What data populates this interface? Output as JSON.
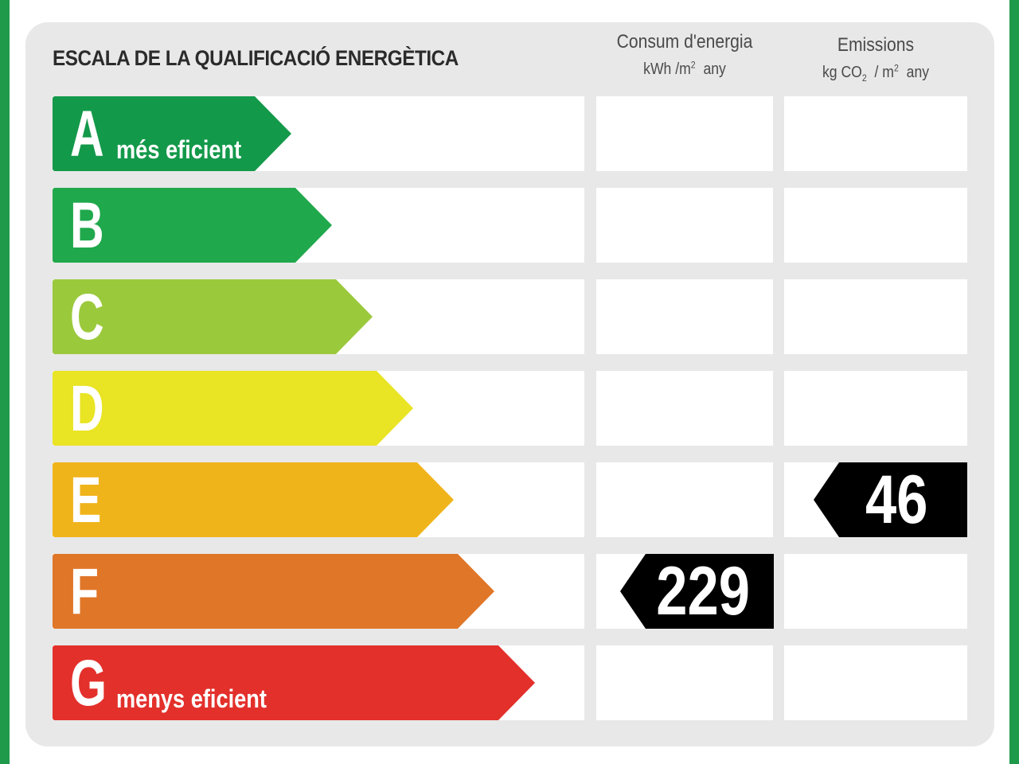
{
  "title": "ESCALA DE LA QUALIFICACIÓ ENERGÈTICA",
  "columns": {
    "energy": {
      "label": "Consum d'energia",
      "unit_prefix": "kWh /m",
      "unit_sup": "2",
      "unit_suffix": "any"
    },
    "emissions": {
      "label": "Emissions",
      "unit_prefix": "kg CO",
      "unit_sub": "2",
      "unit_mid": "/ m",
      "unit_sup": "2",
      "unit_suffix": "any"
    }
  },
  "ratings": [
    {
      "letter": "A",
      "sublabel": "més eficient",
      "color": "#13994a"
    },
    {
      "letter": "B",
      "sublabel": "",
      "color": "#20a84c"
    },
    {
      "letter": "C",
      "sublabel": "",
      "color": "#9bc93c"
    },
    {
      "letter": "D",
      "sublabel": "",
      "color": "#e9e424"
    },
    {
      "letter": "E",
      "sublabel": "",
      "color": "#f0b41b"
    },
    {
      "letter": "F",
      "sublabel": "",
      "color": "#e07628"
    },
    {
      "letter": "G",
      "sublabel": "menys eficient",
      "color": "#e3302b"
    }
  ],
  "energy_rating": {
    "letter": "F",
    "value": "229"
  },
  "emissions_rating": {
    "letter": "E",
    "value": "46"
  }
}
